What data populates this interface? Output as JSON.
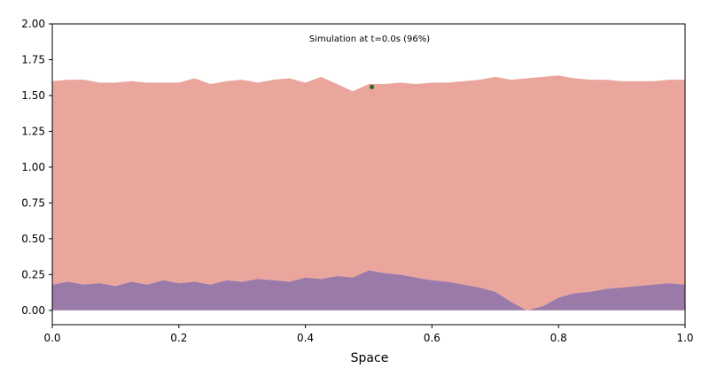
{
  "chart_data": {
    "type": "area",
    "title": "Simulation at t=0.0s (96%)",
    "xlabel": "Space",
    "ylabel": "",
    "xlim": [
      0.0,
      1.0
    ],
    "ylim": [
      -0.1,
      2.0
    ],
    "x_ticks": [
      "0.0",
      "0.2",
      "0.4",
      "0.6",
      "0.8",
      "1.0"
    ],
    "y_ticks": [
      "0.00",
      "0.25",
      "0.50",
      "0.75",
      "1.00",
      "1.25",
      "1.50",
      "1.75",
      "2.00"
    ],
    "grid": false,
    "stacked": true,
    "colors": {
      "upper": "#eaa69d",
      "lower": "#9a7aa8",
      "marker": "#2e6b1f"
    },
    "x": [
      0.0,
      0.025,
      0.05,
      0.075,
      0.1,
      0.125,
      0.15,
      0.175,
      0.2,
      0.225,
      0.25,
      0.275,
      0.3,
      0.325,
      0.35,
      0.375,
      0.4,
      0.425,
      0.45,
      0.475,
      0.5,
      0.525,
      0.55,
      0.575,
      0.6,
      0.625,
      0.65,
      0.675,
      0.7,
      0.725,
      0.75,
      0.775,
      0.8,
      0.825,
      0.85,
      0.875,
      0.9,
      0.925,
      0.95,
      0.975,
      1.0
    ],
    "series": [
      {
        "values": [
          0.18,
          0.2,
          0.18,
          0.19,
          0.17,
          0.2,
          0.18,
          0.21,
          0.19,
          0.2,
          0.18,
          0.21,
          0.2,
          0.22,
          0.21,
          0.2,
          0.23,
          0.22,
          0.24,
          0.23,
          0.28,
          0.26,
          0.25,
          0.23,
          0.21,
          0.2,
          0.18,
          0.16,
          0.13,
          0.06,
          0.0,
          0.03,
          0.09,
          0.12,
          0.13,
          0.15,
          0.16,
          0.17,
          0.18,
          0.19,
          0.18
        ]
      },
      {
        "values": [
          1.42,
          1.41,
          1.43,
          1.4,
          1.42,
          1.4,
          1.41,
          1.38,
          1.4,
          1.42,
          1.4,
          1.39,
          1.41,
          1.37,
          1.4,
          1.42,
          1.36,
          1.41,
          1.34,
          1.3,
          1.3,
          1.32,
          1.34,
          1.35,
          1.38,
          1.39,
          1.42,
          1.45,
          1.5,
          1.55,
          1.62,
          1.6,
          1.55,
          1.5,
          1.48,
          1.46,
          1.44,
          1.43,
          1.42,
          1.42,
          1.43
        ]
      }
    ],
    "marker": {
      "x": 0.505,
      "y": 1.56
    }
  }
}
